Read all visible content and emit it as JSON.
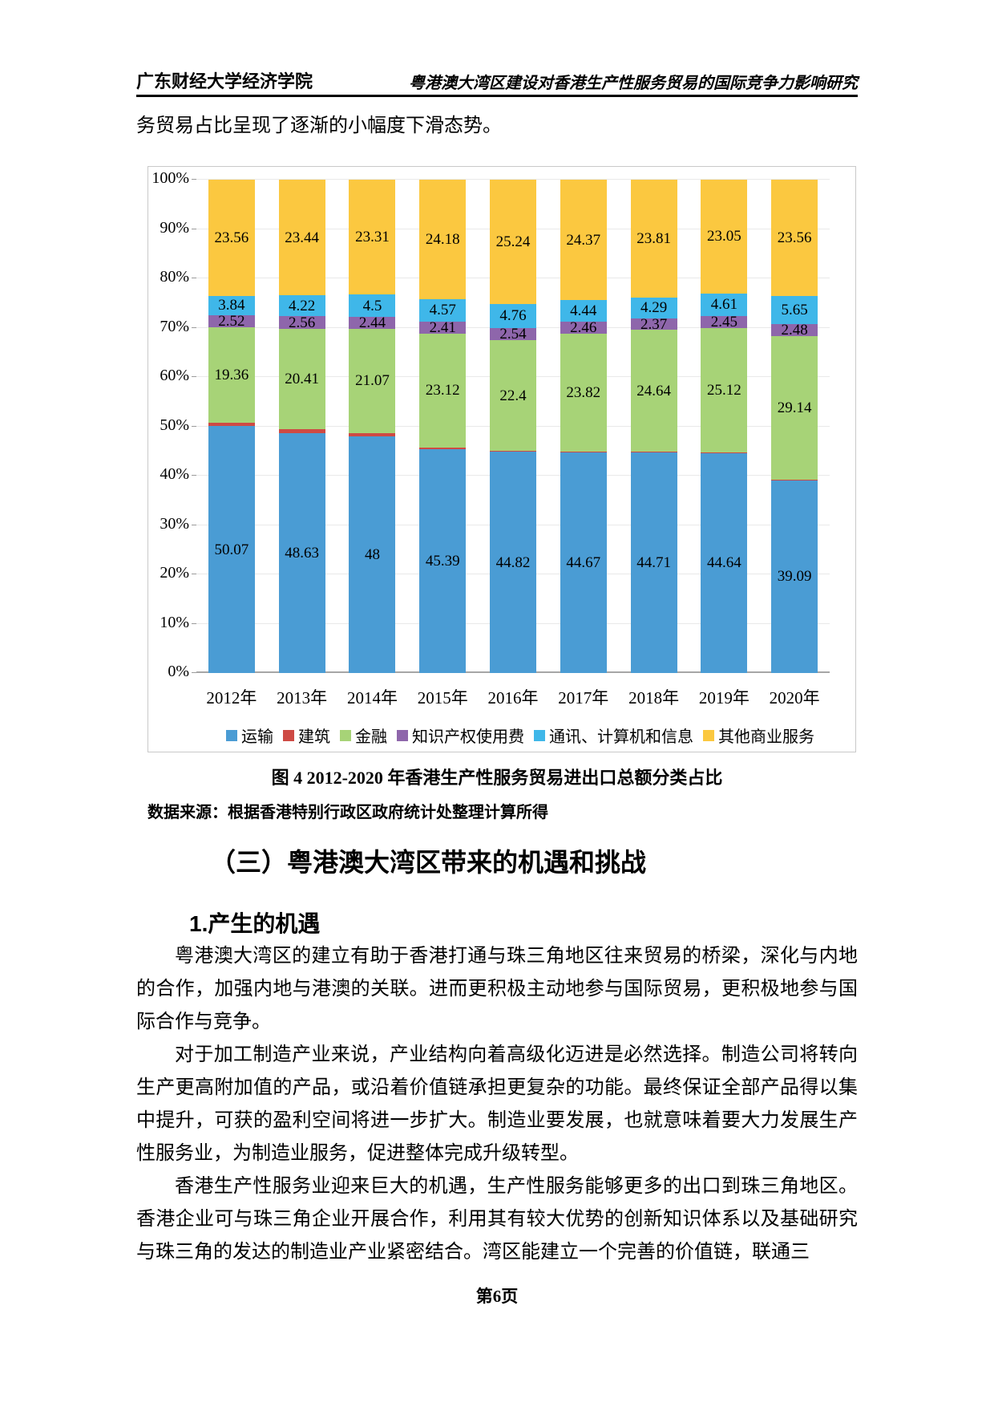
{
  "page": {
    "header_left": "广东财经大学经济学院",
    "header_right": "粤港澳大湾区建设对香港生产性服务贸易的国际竞争力影响研究",
    "intro_line": "务贸易占比呈现了逐渐的小幅度下滑态势。",
    "figure_caption": "图 4 2012-2020 年香港生产性服务贸易进出口总额分类占比",
    "data_source": "数据来源：根据香港特别行政区政府统计处整理计算所得",
    "section_heading": "（三）粤港澳大湾区带来的机遇和挑战",
    "subsection_heading": "1.产生的机遇",
    "paragraphs": [
      "粤港澳大湾区的建立有助于香港打通与珠三角地区往来贸易的桥梁，深化与内地的合作，加强内地与港澳的关联。进而更积极主动地参与国际贸易，更积极地参与国际合作与竞争。",
      "对于加工制造产业来说，产业结构向着高级化迈进是必然选择。制造公司将转向生产更高附加值的产品，或沿着价值链承担更复杂的功能。最终保证全部产品得以集中提升，可获的盈利空间将进一步扩大。制造业要发展，也就意味着要大力发展生产性服务业，为制造业服务，促进整体完成升级转型。",
      "香港生产性服务业迎来巨大的机遇，生产性服务能够更多的出口到珠三角地区。香港企业可与珠三角企业开展合作，利用其有较大优势的创新知识体系以及基础研究与珠三角的发达的制造业产业紧密结合。湾区能建立一个完善的价值链，联通三"
    ],
    "footer": "第6页"
  },
  "chart_data": {
    "type": "bar",
    "stacked": true,
    "percent_stacked": true,
    "categories": [
      "2012年",
      "2013年",
      "2014年",
      "2015年",
      "2016年",
      "2017年",
      "2018年",
      "2019年",
      "2020年"
    ],
    "series": [
      {
        "name": "运输",
        "color": "#4A9CD4",
        "values": [
          50.07,
          48.63,
          48,
          45.39,
          44.82,
          44.67,
          44.71,
          44.64,
          39.09
        ]
      },
      {
        "name": "建筑",
        "color": "#CE4A44",
        "values": [
          0.65,
          0.73,
          0.68,
          0.33,
          0.24,
          0.23,
          0.17,
          0.13,
          0.09
        ]
      },
      {
        "name": "金融",
        "color": "#A7D377",
        "values": [
          19.36,
          20.41,
          21.07,
          23.12,
          22.4,
          23.82,
          24.64,
          25.12,
          29.14
        ]
      },
      {
        "name": "知识产权使用费",
        "color": "#8E66AB",
        "values": [
          2.52,
          2.56,
          2.44,
          2.41,
          2.54,
          2.46,
          2.37,
          2.45,
          2.48
        ]
      },
      {
        "name": "通讯、计算机和信息",
        "color": "#3FB7E9",
        "values": [
          3.84,
          4.22,
          4.5,
          4.57,
          4.76,
          4.44,
          4.29,
          4.61,
          5.65
        ]
      },
      {
        "name": "其他商业服务",
        "color": "#FBC840",
        "values": [
          23.56,
          23.44,
          23.31,
          24.18,
          25.24,
          24.37,
          23.81,
          23.05,
          23.56
        ]
      }
    ],
    "y_ticks": [
      "0%",
      "10%",
      "20%",
      "30%",
      "40%",
      "50%",
      "60%",
      "70%",
      "80%",
      "90%",
      "100%"
    ],
    "ylim": [
      0,
      100
    ],
    "grid": true,
    "grid_color": "#E9E9E9",
    "legend_position": "bottom",
    "xlabel": "",
    "ylabel": ""
  }
}
